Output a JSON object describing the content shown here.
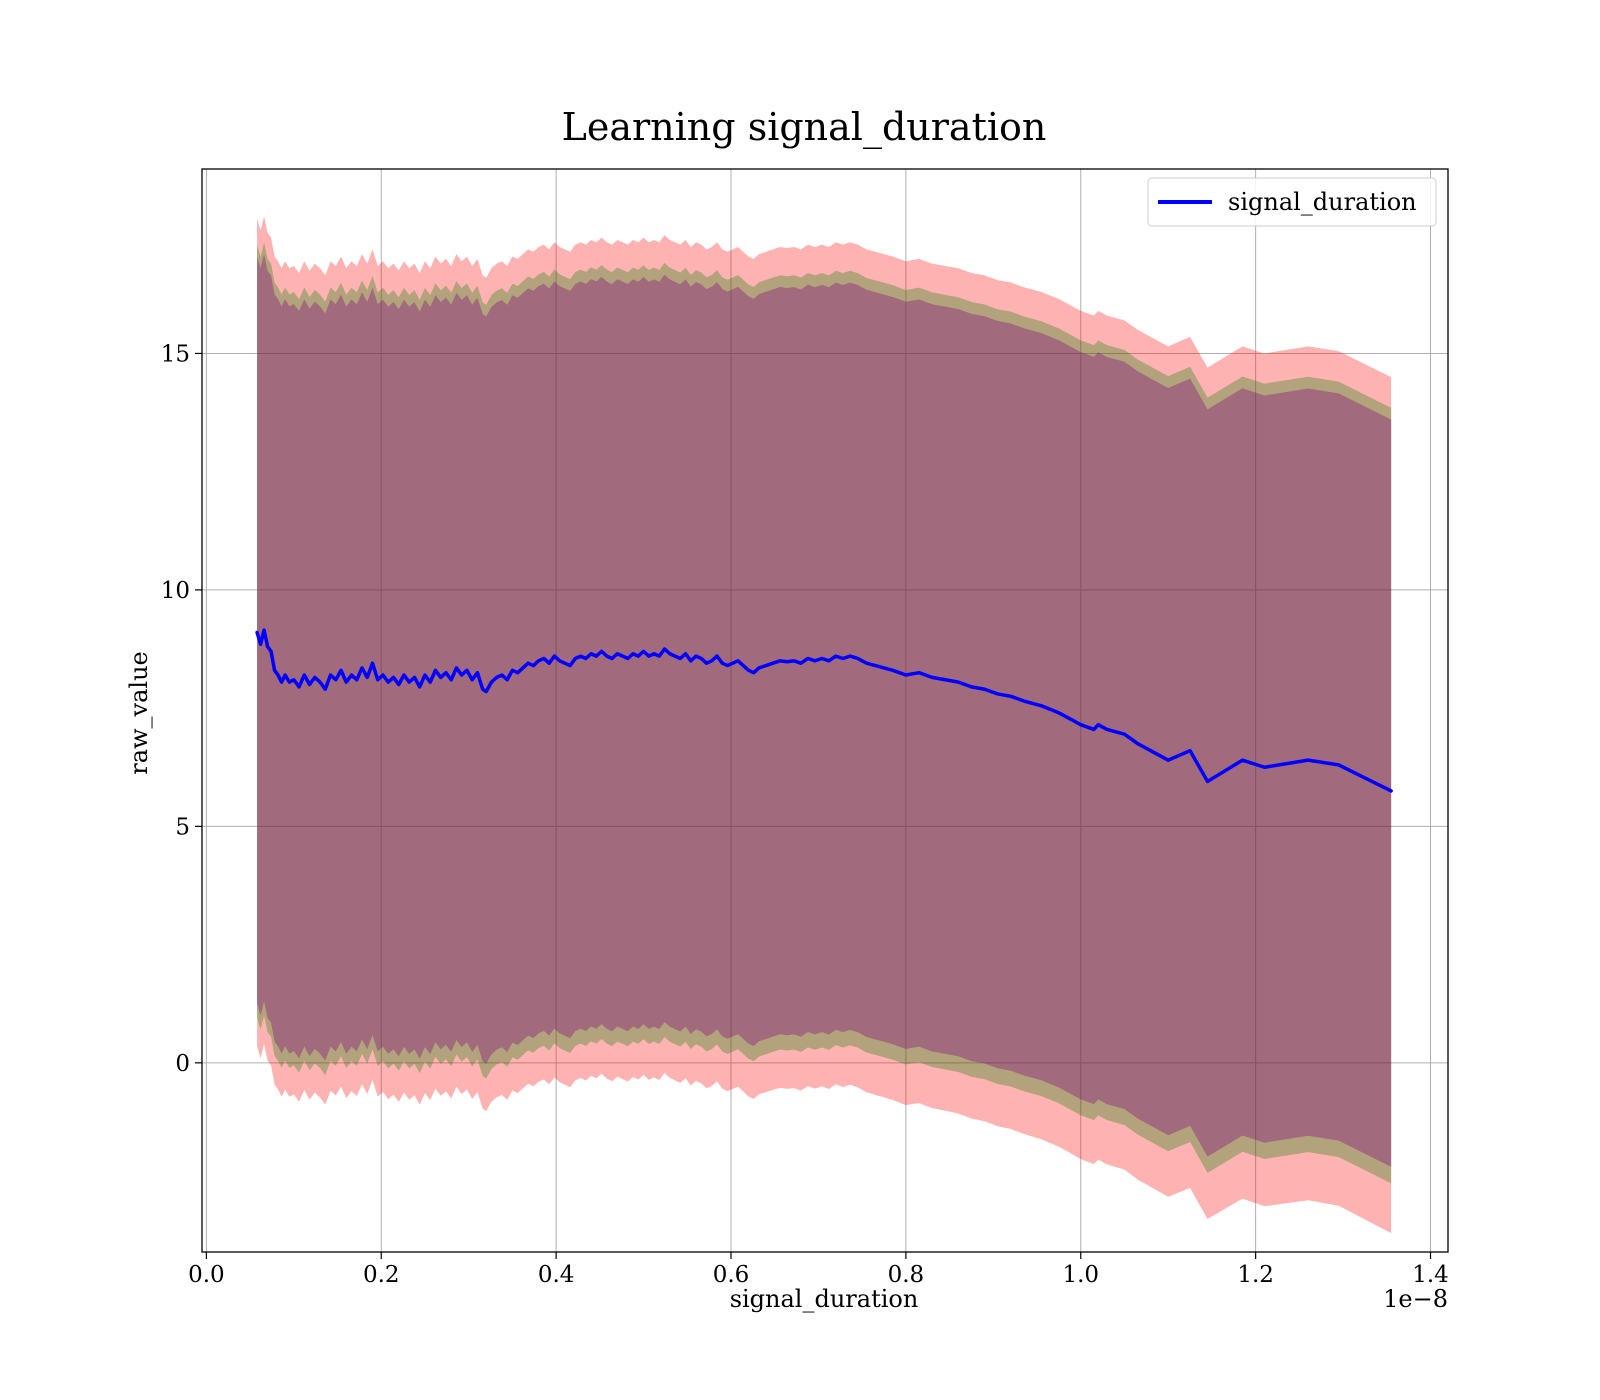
{
  "chart_data": {
    "type": "line",
    "title": "Learning signal_duration",
    "xlabel": "signal_duration",
    "ylabel": "raw_value",
    "x_offset_label": "1e−8",
    "xlim": [
      -0.005,
      1.42
    ],
    "ylim": [
      -4.0,
      18.9
    ],
    "x_ticks": [
      0.0,
      0.2,
      0.4,
      0.6,
      0.8,
      1.0,
      1.2,
      1.4
    ],
    "x_tick_labels": [
      "0.0",
      "0.2",
      "0.4",
      "0.6",
      "0.8",
      "1.0",
      "1.2",
      "1.4"
    ],
    "y_ticks": [
      0,
      5,
      10,
      15
    ],
    "y_tick_labels": [
      "0",
      "5",
      "10",
      "15"
    ],
    "grid": true,
    "legend_position": "top-right",
    "series": [
      {
        "name": "signal_duration",
        "color": "#0000ff",
        "x": [
          0.058,
          0.062,
          0.066,
          0.07,
          0.074,
          0.078,
          0.082,
          0.086,
          0.09,
          0.095,
          0.1,
          0.106,
          0.112,
          0.118,
          0.124,
          0.13,
          0.136,
          0.142,
          0.148,
          0.154,
          0.16,
          0.166,
          0.172,
          0.178,
          0.184,
          0.19,
          0.196,
          0.202,
          0.208,
          0.214,
          0.22,
          0.226,
          0.232,
          0.238,
          0.244,
          0.25,
          0.256,
          0.262,
          0.268,
          0.274,
          0.28,
          0.286,
          0.292,
          0.298,
          0.304,
          0.31,
          0.316,
          0.32,
          0.326,
          0.332,
          0.338,
          0.344,
          0.35,
          0.356,
          0.362,
          0.368,
          0.374,
          0.38,
          0.386,
          0.392,
          0.398,
          0.404,
          0.41,
          0.416,
          0.422,
          0.428,
          0.434,
          0.44,
          0.446,
          0.452,
          0.458,
          0.464,
          0.47,
          0.476,
          0.482,
          0.488,
          0.494,
          0.5,
          0.506,
          0.512,
          0.518,
          0.524,
          0.53,
          0.536,
          0.542,
          0.548,
          0.554,
          0.56,
          0.566,
          0.572,
          0.578,
          0.584,
          0.59,
          0.596,
          0.602,
          0.608,
          0.614,
          0.62,
          0.626,
          0.632,
          0.64,
          0.648,
          0.656,
          0.664,
          0.672,
          0.68,
          0.688,
          0.696,
          0.704,
          0.712,
          0.72,
          0.728,
          0.736,
          0.745,
          0.755,
          0.765,
          0.775,
          0.785,
          0.8,
          0.815,
          0.83,
          0.845,
          0.86,
          0.875,
          0.89,
          0.905,
          0.92,
          0.935,
          0.955,
          0.975,
          0.985,
          1.0,
          1.015,
          1.02,
          1.03,
          1.05,
          1.065,
          1.085,
          1.1,
          1.125,
          1.145,
          1.185,
          1.21,
          1.26,
          1.295,
          1.355
        ],
        "y": [
          9.1,
          8.85,
          9.15,
          8.8,
          8.7,
          8.3,
          8.2,
          8.05,
          8.2,
          8.05,
          8.1,
          7.95,
          8.2,
          8.0,
          8.15,
          8.05,
          7.9,
          8.2,
          8.1,
          8.3,
          8.05,
          8.2,
          8.1,
          8.35,
          8.15,
          8.45,
          8.1,
          8.2,
          8.05,
          8.15,
          8.0,
          8.2,
          8.05,
          8.15,
          7.95,
          8.2,
          8.05,
          8.3,
          8.15,
          8.25,
          8.1,
          8.35,
          8.2,
          8.3,
          8.1,
          8.25,
          7.9,
          7.85,
          8.05,
          8.15,
          8.2,
          8.1,
          8.3,
          8.25,
          8.35,
          8.45,
          8.4,
          8.5,
          8.55,
          8.45,
          8.6,
          8.5,
          8.45,
          8.4,
          8.55,
          8.6,
          8.55,
          8.65,
          8.6,
          8.7,
          8.6,
          8.55,
          8.65,
          8.6,
          8.55,
          8.65,
          8.6,
          8.7,
          8.6,
          8.65,
          8.6,
          8.75,
          8.65,
          8.6,
          8.55,
          8.65,
          8.5,
          8.6,
          8.55,
          8.45,
          8.5,
          8.6,
          8.45,
          8.4,
          8.45,
          8.5,
          8.4,
          8.3,
          8.25,
          8.35,
          8.4,
          8.45,
          8.5,
          8.48,
          8.5,
          8.45,
          8.55,
          8.5,
          8.55,
          8.5,
          8.6,
          8.55,
          8.6,
          8.55,
          8.45,
          8.4,
          8.35,
          8.3,
          8.2,
          8.25,
          8.15,
          8.1,
          8.05,
          7.95,
          7.9,
          7.8,
          7.75,
          7.65,
          7.55,
          7.4,
          7.3,
          7.15,
          7.05,
          7.15,
          7.05,
          6.95,
          6.75,
          6.55,
          6.4,
          6.6,
          5.95,
          6.4,
          6.25,
          6.4,
          6.3,
          5.75
        ],
        "bands": [
          {
            "color": "#ff0000",
            "opacity": 0.3,
            "width_lower": 8.75,
            "width_upper": 8.75,
            "grow_lower": 0.6,
            "grow_upper": 0.0
          },
          {
            "color": "#008000",
            "opacity": 0.3,
            "width_lower": 8.15,
            "width_upper": 8.2,
            "grow_lower": 0.15,
            "grow_upper": -0.1
          },
          {
            "color": "#800080",
            "opacity": 0.35,
            "width_lower": 7.85,
            "width_upper": 7.95,
            "grow_lower": 0.1,
            "grow_upper": -0.1
          }
        ]
      }
    ]
  }
}
